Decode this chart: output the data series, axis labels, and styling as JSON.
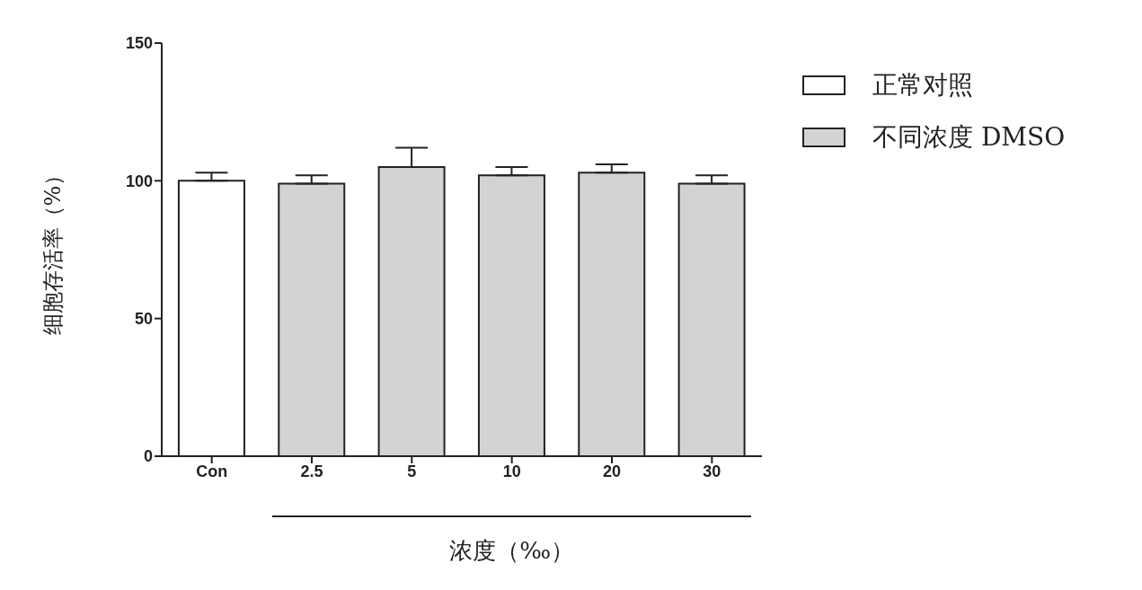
{
  "chart_data": {
    "type": "bar",
    "ylabel": "细胞存活率（%）",
    "xlabel": "浓度（‰）",
    "categories": [
      "Con",
      "2.5",
      "5",
      "10",
      "20",
      "30"
    ],
    "series": [
      {
        "name": "正常对照",
        "color": "#ffffff",
        "values": [
          100,
          null,
          null,
          null,
          null,
          null
        ],
        "errors": [
          [
            100,
            103
          ],
          null,
          null,
          null,
          null,
          null
        ]
      },
      {
        "name": "不同浓度 DMSO",
        "color": "#d3d3d3",
        "values": [
          null,
          99,
          105,
          102,
          103,
          99
        ],
        "errors": [
          null,
          [
            99,
            102
          ],
          [
            105,
            112
          ],
          [
            102,
            105
          ],
          [
            103,
            106
          ],
          [
            99,
            102
          ]
        ]
      }
    ],
    "stacked": true,
    "ylim": [
      0,
      150
    ],
    "yticks": [
      0,
      50,
      100,
      150
    ],
    "grid": false,
    "legend": "top right"
  }
}
